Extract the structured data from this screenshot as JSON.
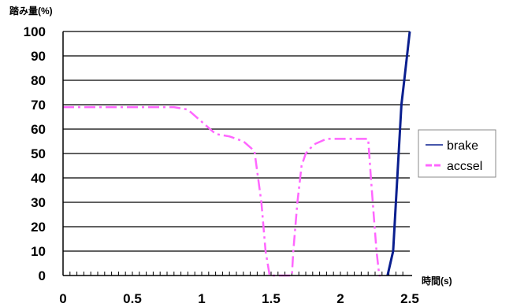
{
  "chart_data": {
    "type": "line",
    "title": "",
    "ylabel": "踏み量(%)",
    "xlabel": "時間(s)",
    "xlim": [
      0,
      2.5
    ],
    "ylim": [
      0,
      100
    ],
    "x_ticks": [
      "0",
      "0.5",
      "1",
      "1.5",
      "2",
      "2.5"
    ],
    "y_ticks": [
      "0",
      "10",
      "20",
      "30",
      "40",
      "50",
      "60",
      "70",
      "80",
      "90",
      "100"
    ],
    "grid": "horizontal",
    "legend_position": "right",
    "series": [
      {
        "name": "brake",
        "color": "#0a1f8f",
        "style": "solid",
        "x": [
          2.34,
          2.38,
          2.4,
          2.42,
          2.44,
          2.46,
          2.48,
          2.5
        ],
        "y": [
          0,
          10,
          30,
          50,
          70,
          80,
          90,
          100
        ]
      },
      {
        "name": "accsel",
        "color": "#ff66ff",
        "style": "dashdot",
        "x": [
          0,
          0.2,
          0.4,
          0.6,
          0.8,
          0.9,
          1.0,
          1.1,
          1.2,
          1.3,
          1.38,
          1.43,
          1.46,
          1.49,
          1.51,
          1.54,
          1.59,
          1.62,
          1.65,
          1.66,
          1.69,
          1.72,
          1.75,
          1.78,
          1.82,
          1.9,
          2.0,
          2.1,
          2.2,
          2.22,
          2.24,
          2.26,
          2.28,
          2.29
        ],
        "y": [
          69,
          69,
          69,
          69,
          69,
          68,
          63,
          58,
          57,
          55,
          51,
          30,
          10,
          0,
          0,
          0,
          0,
          0,
          0,
          10,
          30,
          45,
          50,
          52,
          54,
          56,
          56,
          56,
          56,
          40,
          25,
          10,
          0,
          0
        ]
      }
    ]
  }
}
